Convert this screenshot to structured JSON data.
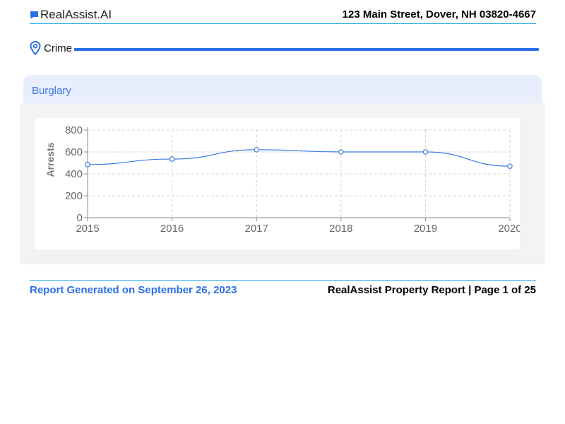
{
  "header": {
    "brand_icon": "chat-bubble-icon",
    "brand_name": "RealAssist.AI",
    "address": "123 Main Street, Dover, NH 03820-4667"
  },
  "section": {
    "icon": "location-pin-icon",
    "label": "Crime"
  },
  "card": {
    "title": "Burglary"
  },
  "chart_data": {
    "type": "line",
    "title": "",
    "xlabel": "",
    "ylabel": "Arrests",
    "x": [
      "2015",
      "2016",
      "2017",
      "2018",
      "2019",
      "2020"
    ],
    "series": [
      {
        "values": [
          485,
          535,
          620,
          600,
          600,
          470
        ]
      }
    ],
    "ylim": [
      0,
      800
    ],
    "yticks": [
      "0",
      "200",
      "400",
      "600",
      "800"
    ],
    "grid": true,
    "line_color": "#3b7be8"
  },
  "footer": {
    "generated": "Report Generated on September 26, 2023",
    "report_page": "RealAssist Property Report | Page 1 of 25"
  },
  "colors": {
    "accent": "#2b6fe8",
    "header_rule": "#29a8f0",
    "card_header_bg": "#e8eefb",
    "card_body_bg": "#f2f3f5"
  }
}
